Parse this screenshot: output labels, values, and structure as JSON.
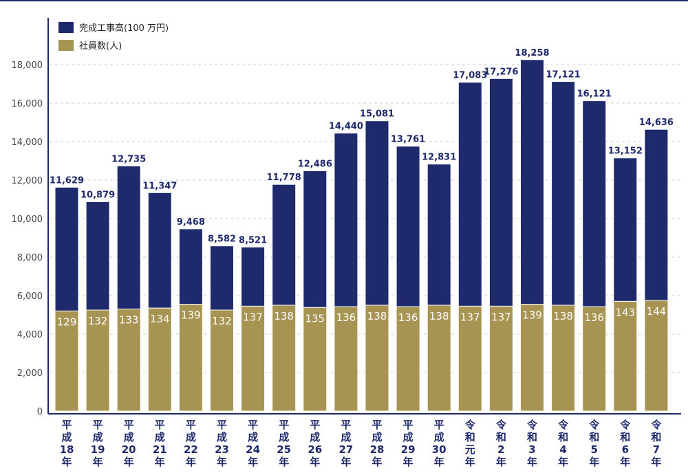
{
  "chart_data": {
    "type": "bar",
    "stacked": true,
    "categories": [
      [
        "平",
        "成",
        "18",
        "年"
      ],
      [
        "平",
        "成",
        "19",
        "年"
      ],
      [
        "平",
        "成",
        "20",
        "年"
      ],
      [
        "平",
        "成",
        "21",
        "年"
      ],
      [
        "平",
        "成",
        "22",
        "年"
      ],
      [
        "平",
        "成",
        "23",
        "年"
      ],
      [
        "平",
        "成",
        "24",
        "年"
      ],
      [
        "平",
        "成",
        "25",
        "年"
      ],
      [
        "平",
        "成",
        "26",
        "年"
      ],
      [
        "平",
        "成",
        "27",
        "年"
      ],
      [
        "平",
        "成",
        "28",
        "年"
      ],
      [
        "平",
        "成",
        "29",
        "年"
      ],
      [
        "平",
        "成",
        "30",
        "年"
      ],
      [
        "令",
        "和",
        "元",
        "年"
      ],
      [
        "令",
        "和",
        "2",
        "年"
      ],
      [
        "令",
        "和",
        "3",
        "年"
      ],
      [
        "令",
        "和",
        "4",
        "年"
      ],
      [
        "令",
        "和",
        "5",
        "年"
      ],
      [
        "令",
        "和",
        "6",
        "年"
      ],
      [
        "令",
        "和",
        "7",
        "年"
      ]
    ],
    "series": [
      {
        "name": "完成工事高(100 万円)",
        "color": "#1e2a6c",
        "values": [
          11629,
          10879,
          12735,
          11347,
          9468,
          8582,
          8521,
          11778,
          12486,
          14440,
          15081,
          13761,
          12831,
          17083,
          17276,
          18258,
          17121,
          16121,
          13152,
          14636
        ],
        "value_labels": [
          "11,629",
          "10,879",
          "12,735",
          "11,347",
          "9,468",
          "8,582",
          "8,521",
          "11,778",
          "12,486",
          "14,440",
          "15,081",
          "13,761",
          "12,831",
          "17,083",
          "17,276",
          "18,258",
          "17,121",
          "16,121",
          "13,152",
          "14,636"
        ]
      },
      {
        "name": "社員数(人)",
        "color": "#a79352",
        "values": [
          129,
          132,
          133,
          134,
          139,
          132,
          137,
          138,
          135,
          136,
          138,
          136,
          138,
          137,
          137,
          139,
          138,
          136,
          143,
          144
        ],
        "value_labels": [
          "129",
          "132",
          "133",
          "134",
          "139",
          "132",
          "137",
          "138",
          "135",
          "136",
          "138",
          "136",
          "138",
          "137",
          "137",
          "139",
          "138",
          "136",
          "143",
          "144"
        ],
        "displayed_height": [
          5200,
          5250,
          5300,
          5350,
          5550,
          5250,
          5450,
          5500,
          5380,
          5420,
          5500,
          5420,
          5500,
          5450,
          5450,
          5550,
          5500,
          5420,
          5700,
          5750
        ]
      }
    ],
    "title": "",
    "xlabel": "",
    "ylabel": "",
    "ylim": [
      0,
      20000
    ],
    "yticks": [
      0,
      2000,
      4000,
      6000,
      8000,
      10000,
      12000,
      14000,
      16000,
      18000
    ],
    "ytick_labels": [
      "0",
      "2,000",
      "4,000",
      "6,000",
      "8,000",
      "10,000",
      "12,000",
      "14,000",
      "16,000",
      "18,000"
    ],
    "grid": true,
    "legend": "top-left"
  }
}
